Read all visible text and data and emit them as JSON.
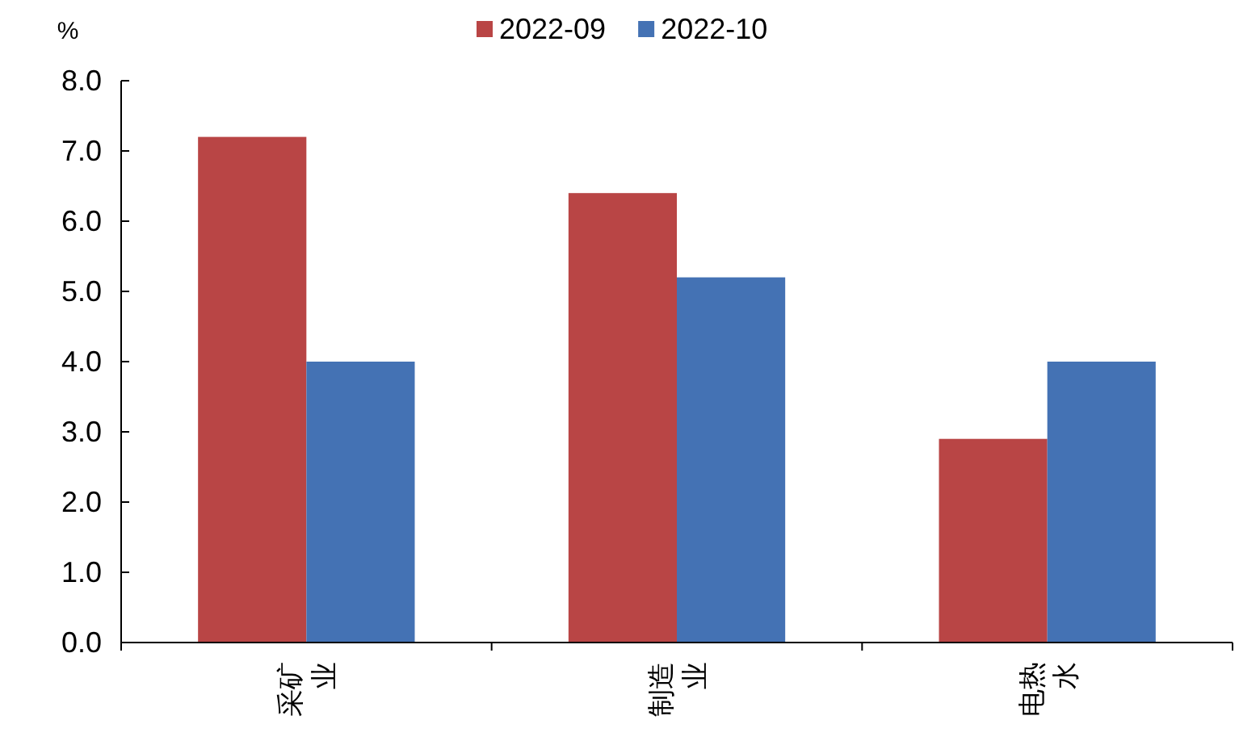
{
  "chart_data": {
    "type": "bar",
    "ylabel": "%",
    "categories": [
      "采矿业",
      "制造业",
      "电热水"
    ],
    "series": [
      {
        "name": "2022-09",
        "color": "#b94545",
        "values": [
          7.2,
          6.4,
          2.9
        ]
      },
      {
        "name": "2022-10",
        "color": "#4472b4",
        "values": [
          4.0,
          5.2,
          4.0
        ]
      }
    ],
    "ylim": [
      0,
      8
    ],
    "yticks": [
      {
        "value": 0,
        "label": "0.0"
      },
      {
        "value": 1,
        "label": "1.0"
      },
      {
        "value": 2,
        "label": "2.0"
      },
      {
        "value": 3,
        "label": "3.0"
      },
      {
        "value": 4,
        "label": "4.0"
      },
      {
        "value": 5,
        "label": "5.0"
      },
      {
        "value": 6,
        "label": "6.0"
      },
      {
        "value": 7,
        "label": "7.0"
      },
      {
        "value": 8,
        "label": "8.0"
      }
    ],
    "grid": false,
    "legend": "top"
  }
}
